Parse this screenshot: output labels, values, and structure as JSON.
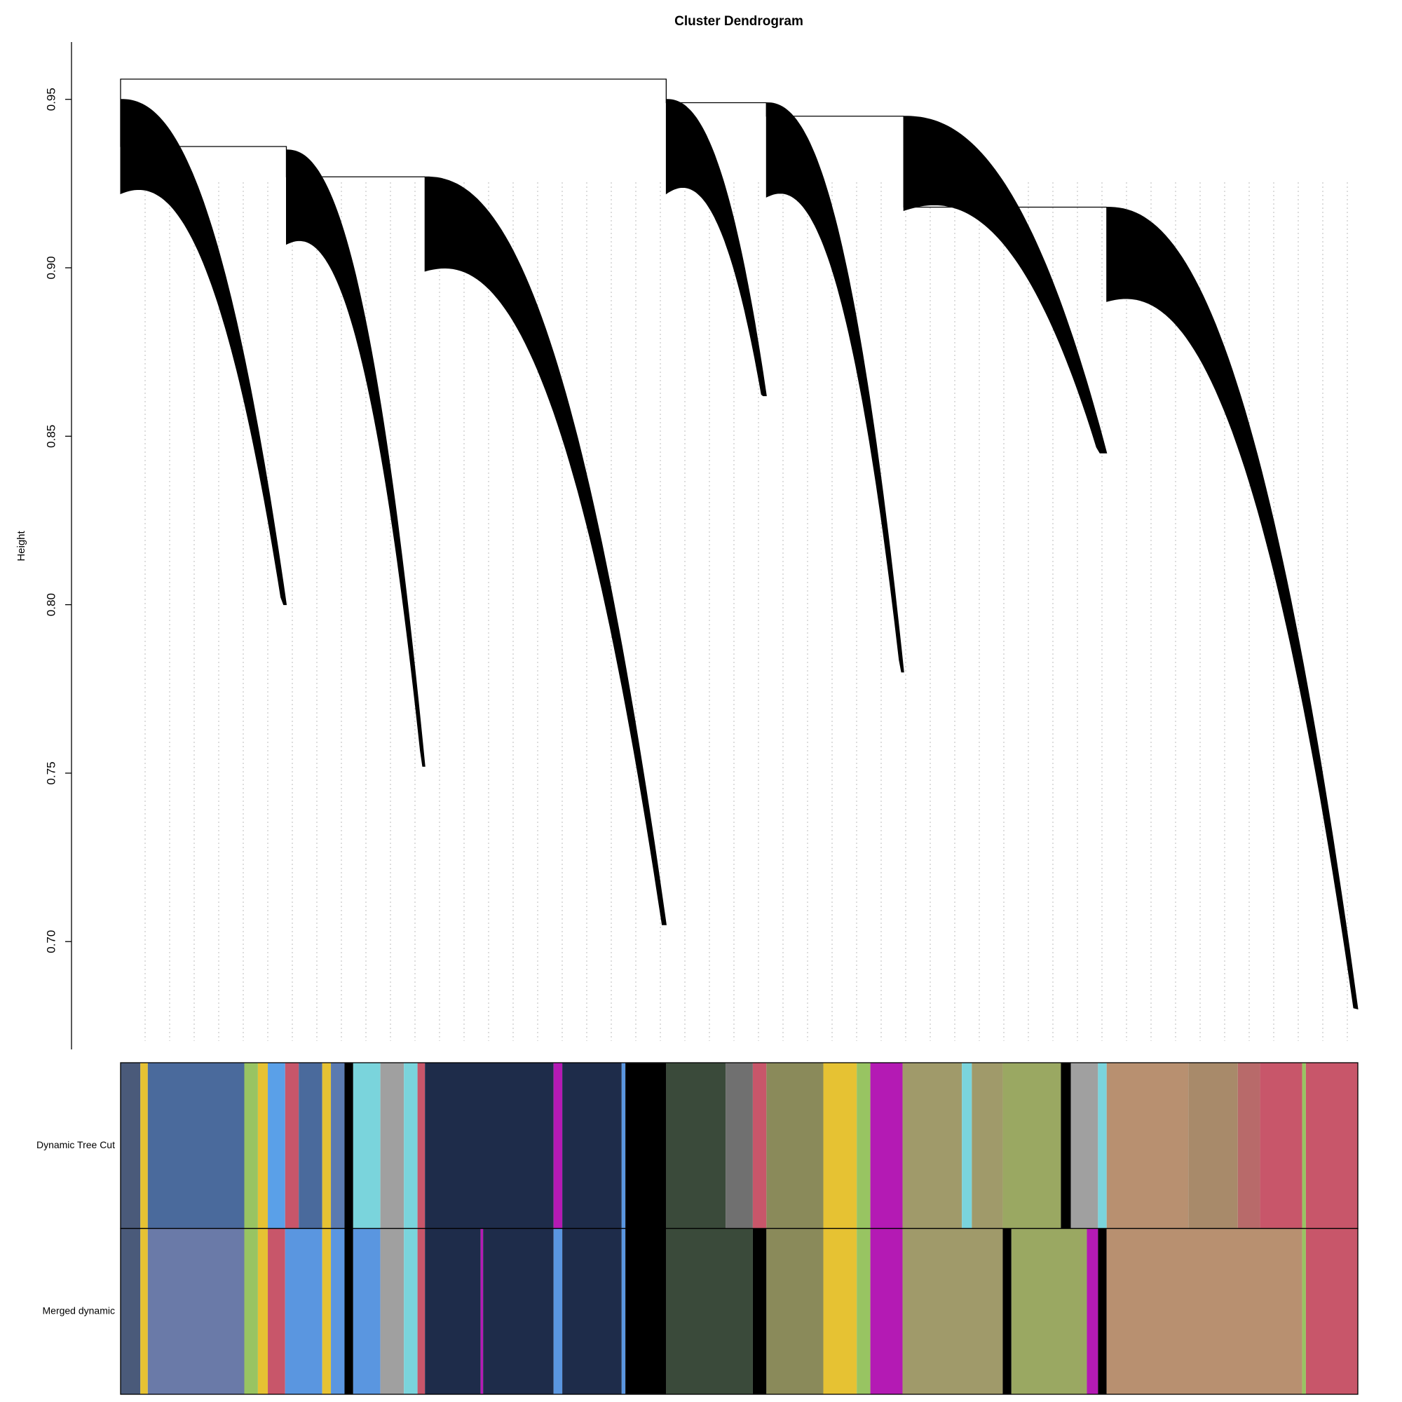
{
  "chart_data": {
    "type": "dendrogram",
    "title": "Cluster Dendrogram",
    "y_label": "Height",
    "ylim": [
      0.668,
      0.967
    ],
    "yticks": [
      {
        "value": 0.7,
        "label": "0.70"
      },
      0.75,
      {
        "value": 0.8,
        "label": "0.80"
      },
      0.85,
      {
        "value": 0.9,
        "label": "0.90"
      },
      0.95
    ],
    "xlim": [
      0,
      1000
    ],
    "color": "#000000",
    "clusters": [
      {
        "x": [
          0,
          134
        ],
        "top": 0.95,
        "bottom": 0.8
      },
      {
        "x": [
          134,
          246
        ],
        "top": 0.935,
        "bottom": 0.752
      },
      {
        "x": [
          246,
          441
        ],
        "top": 0.927,
        "bottom": 0.705
      },
      {
        "x": [
          441,
          522
        ],
        "top": 0.95,
        "bottom": 0.862
      },
      {
        "x": [
          522,
          633
        ],
        "top": 0.949,
        "bottom": 0.78
      },
      {
        "x": [
          633,
          797
        ],
        "top": 0.945,
        "bottom": 0.845
      },
      {
        "x": [
          797,
          1000
        ],
        "top": 0.918,
        "bottom": 0.68
      }
    ],
    "merges": [
      {
        "height": 0.956,
        "clusters": [
          0,
          3
        ]
      },
      {
        "height": 0.936,
        "clusters": [
          0,
          1
        ]
      },
      {
        "height": 0.927,
        "clusters": [
          1,
          2
        ]
      },
      {
        "height": 0.949,
        "clusters": [
          3,
          4
        ]
      },
      {
        "height": 0.945,
        "clusters": [
          4,
          5
        ]
      },
      {
        "height": 0.918,
        "clusters": [
          5,
          6
        ]
      }
    ],
    "color_rows": [
      {
        "label": "Dynamic Tree Cut",
        "segments": [
          {
            "from": 0,
            "to": 16,
            "color": "#4a5a7a"
          },
          {
            "from": 16,
            "to": 22,
            "color": "#e6c233"
          },
          {
            "from": 22,
            "to": 100,
            "color": "#4a6a9c"
          },
          {
            "from": 100,
            "to": 111,
            "color": "#98c462"
          },
          {
            "from": 111,
            "to": 119,
            "color": "#e6c233"
          },
          {
            "from": 119,
            "to": 133,
            "color": "#5aa0e8"
          },
          {
            "from": 133,
            "to": 144,
            "color": "#c8566a"
          },
          {
            "from": 144,
            "to": 163,
            "color": "#4a6a9c"
          },
          {
            "from": 163,
            "to": 170,
            "color": "#e6c233"
          },
          {
            "from": 170,
            "to": 181,
            "color": "#5a7ab0"
          },
          {
            "from": 181,
            "to": 188,
            "color": "#000000"
          },
          {
            "from": 188,
            "to": 210,
            "color": "#7ad4dc"
          },
          {
            "from": 210,
            "to": 229,
            "color": "#a0a0a0"
          },
          {
            "from": 229,
            "to": 240,
            "color": "#7ad4dc"
          },
          {
            "from": 240,
            "to": 246,
            "color": "#c8566a"
          },
          {
            "from": 246,
            "to": 350,
            "color": "#1e2c4a"
          },
          {
            "from": 350,
            "to": 357,
            "color": "#b41ab4"
          },
          {
            "from": 357,
            "to": 405,
            "color": "#1e2c4a"
          },
          {
            "from": 405,
            "to": 408,
            "color": "#5a96e0"
          },
          {
            "from": 408,
            "to": 441,
            "color": "#000000"
          },
          {
            "from": 441,
            "to": 489,
            "color": "#3a4a3a"
          },
          {
            "from": 489,
            "to": 511,
            "color": "#707070"
          },
          {
            "from": 511,
            "to": 522,
            "color": "#c8566a"
          },
          {
            "from": 522,
            "to": 568,
            "color": "#8a8a5a"
          },
          {
            "from": 568,
            "to": 595,
            "color": "#e6c233"
          },
          {
            "from": 595,
            "to": 606,
            "color": "#98c462"
          },
          {
            "from": 606,
            "to": 632,
            "color": "#b41ab4"
          },
          {
            "from": 632,
            "to": 680,
            "color": "#a09a6a"
          },
          {
            "from": 680,
            "to": 688,
            "color": "#7ad4dc"
          },
          {
            "from": 688,
            "to": 713,
            "color": "#a09a6a"
          },
          {
            "from": 713,
            "to": 760,
            "color": "#9aa862"
          },
          {
            "from": 760,
            "to": 768,
            "color": "#000000"
          },
          {
            "from": 768,
            "to": 790,
            "color": "#a0a0a0"
          },
          {
            "from": 790,
            "to": 797,
            "color": "#7ad4dc"
          },
          {
            "from": 797,
            "to": 863,
            "color": "#b89070"
          },
          {
            "from": 863,
            "to": 903,
            "color": "#a88a6a"
          },
          {
            "from": 903,
            "to": 921,
            "color": "#b86a6a"
          },
          {
            "from": 921,
            "to": 955,
            "color": "#c8566a"
          },
          {
            "from": 955,
            "to": 958,
            "color": "#98c462"
          },
          {
            "from": 958,
            "to": 1000,
            "color": "#c8566a"
          }
        ]
      },
      {
        "label": "Merged dynamic",
        "segments": [
          {
            "from": 0,
            "to": 16,
            "color": "#4a5a7a"
          },
          {
            "from": 16,
            "to": 22,
            "color": "#e6c233"
          },
          {
            "from": 22,
            "to": 100,
            "color": "#6a7aa8"
          },
          {
            "from": 100,
            "to": 111,
            "color": "#98c462"
          },
          {
            "from": 111,
            "to": 119,
            "color": "#e6c233"
          },
          {
            "from": 119,
            "to": 133,
            "color": "#c8566a"
          },
          {
            "from": 133,
            "to": 163,
            "color": "#5a96e0"
          },
          {
            "from": 163,
            "to": 170,
            "color": "#e6c233"
          },
          {
            "from": 170,
            "to": 181,
            "color": "#5a96e0"
          },
          {
            "from": 181,
            "to": 188,
            "color": "#000000"
          },
          {
            "from": 188,
            "to": 210,
            "color": "#5a96e0"
          },
          {
            "from": 210,
            "to": 229,
            "color": "#a0a0a0"
          },
          {
            "from": 229,
            "to": 240,
            "color": "#7ad4dc"
          },
          {
            "from": 240,
            "to": 246,
            "color": "#c8566a"
          },
          {
            "from": 246,
            "to": 291,
            "color": "#1e2c4a"
          },
          {
            "from": 291,
            "to": 293,
            "color": "#b41ab4"
          },
          {
            "from": 293,
            "to": 350,
            "color": "#1e2c4a"
          },
          {
            "from": 350,
            "to": 357,
            "color": "#5a96e0"
          },
          {
            "from": 357,
            "to": 405,
            "color": "#1e2c4a"
          },
          {
            "from": 405,
            "to": 408,
            "color": "#5a96e0"
          },
          {
            "from": 408,
            "to": 441,
            "color": "#000000"
          },
          {
            "from": 441,
            "to": 511,
            "color": "#3a4a3a"
          },
          {
            "from": 511,
            "to": 522,
            "color": "#000000"
          },
          {
            "from": 522,
            "to": 568,
            "color": "#8a8a5a"
          },
          {
            "from": 568,
            "to": 595,
            "color": "#e6c233"
          },
          {
            "from": 595,
            "to": 606,
            "color": "#98c462"
          },
          {
            "from": 606,
            "to": 632,
            "color": "#b41ab4"
          },
          {
            "from": 632,
            "to": 713,
            "color": "#a09a6a"
          },
          {
            "from": 713,
            "to": 720,
            "color": "#000000"
          },
          {
            "from": 720,
            "to": 781,
            "color": "#9aa862"
          },
          {
            "from": 781,
            "to": 790,
            "color": "#b41ab4"
          },
          {
            "from": 790,
            "to": 797,
            "color": "#000000"
          },
          {
            "from": 797,
            "to": 955,
            "color": "#b89070"
          },
          {
            "from": 955,
            "to": 958,
            "color": "#98c462"
          },
          {
            "from": 958,
            "to": 1000,
            "color": "#c8566a"
          }
        ]
      }
    ]
  }
}
